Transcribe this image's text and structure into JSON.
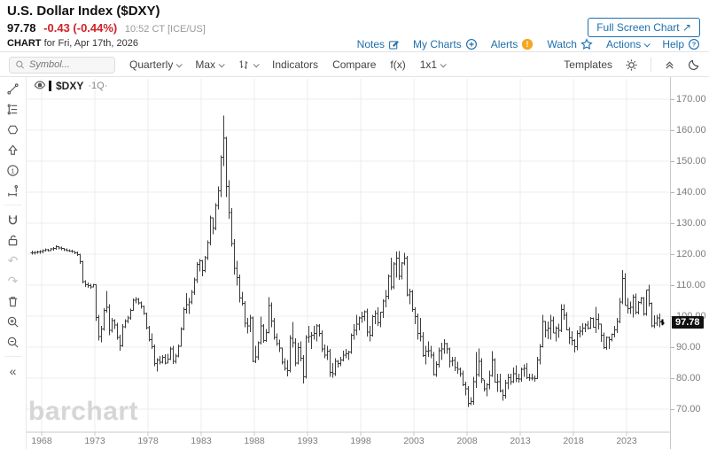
{
  "header": {
    "title": "U.S. Dollar Index ($DXY)",
    "price": "97.78",
    "change": "-0.43 (-0.44%)",
    "quote_time": "10:52 CT [ICE/US]",
    "chart_for_label": "CHART",
    "chart_for_rest": "for Fri, Apr 17th, 2026",
    "fullscreen_label": "Full Screen Chart",
    "fullscreen_arrow": "↗",
    "links": {
      "notes": "Notes",
      "my_charts": "My Charts",
      "alerts": "Alerts",
      "watch": "Watch",
      "actions": "Actions",
      "help": "Help"
    }
  },
  "toolbar": {
    "symbol_placeholder": "Symbol...",
    "period": "Quarterly",
    "range": "Max",
    "indicators": "Indicators",
    "compare": "Compare",
    "fx": "f(x)",
    "layout": "1x1",
    "templates": "Templates"
  },
  "legend": {
    "dots": "⋯",
    "symbol": "$DXY",
    "interval": "·1Q·"
  },
  "watermark": "barchart",
  "colors": {
    "link_blue": "#1f6fad",
    "change_red": "#cf2128",
    "alert_orange": "#f5a623",
    "bar_color": "#3c3c3c",
    "grid": "#ececec",
    "axis_text": "#7d7d7d"
  },
  "chart_data": {
    "type": "ohlc",
    "title": "U.S. Dollar Index ($DXY) quarterly OHLC, Max range",
    "interval": "quarterly",
    "start_year": 1967,
    "start_quarter": 1,
    "x_ticks": [
      1968,
      1973,
      1978,
      1983,
      1988,
      1993,
      1998,
      2003,
      2008,
      2013,
      2018,
      2023
    ],
    "y_ticks": [
      170,
      160,
      150,
      140,
      130,
      120,
      110,
      100,
      90,
      80,
      70
    ],
    "ylim": [
      62,
      177
    ],
    "grid": true,
    "last_price": 97.78,
    "last_price_label": "97.78",
    "bars_format": "[high, low, close] per quarter; open = prior close",
    "bars": [
      [
        121.2,
        119.8,
        120.4
      ],
      [
        121.0,
        119.9,
        120.6
      ],
      [
        121.2,
        120.1,
        120.7
      ],
      [
        121.3,
        120.2,
        120.9
      ],
      [
        121.6,
        120.3,
        121.2
      ],
      [
        121.8,
        120.8,
        121.4
      ],
      [
        121.7,
        120.9,
        121.2
      ],
      [
        122.0,
        121.0,
        121.7
      ],
      [
        122.3,
        121.2,
        121.9
      ],
      [
        122.8,
        121.5,
        122.4
      ],
      [
        122.6,
        121.6,
        122.0
      ],
      [
        122.4,
        121.3,
        121.8
      ],
      [
        122.0,
        121.0,
        121.4
      ],
      [
        121.8,
        120.8,
        121.2
      ],
      [
        121.6,
        120.7,
        121.0
      ],
      [
        121.4,
        120.5,
        120.9
      ],
      [
        121.0,
        120.0,
        120.5
      ],
      [
        120.8,
        119.4,
        119.9
      ],
      [
        120.1,
        116.8,
        117.6
      ],
      [
        117.9,
        110.6,
        111.2
      ],
      [
        111.6,
        109.4,
        110.2
      ],
      [
        110.8,
        109.2,
        109.8
      ],
      [
        110.4,
        108.9,
        109.5
      ],
      [
        110.5,
        109.3,
        110.1
      ],
      [
        110.3,
        98.4,
        99.6
      ],
      [
        100.4,
        92.1,
        93.4
      ],
      [
        96.8,
        91.6,
        95.8
      ],
      [
        102.6,
        95.3,
        101.8
      ],
      [
        108.2,
        101.2,
        102.8
      ],
      [
        103.9,
        93.9,
        95.4
      ],
      [
        99.4,
        94.7,
        98.6
      ],
      [
        99.0,
        95.9,
        97.2
      ],
      [
        97.8,
        92.4,
        93.2
      ],
      [
        94.0,
        88.8,
        90.4
      ],
      [
        97.4,
        90.1,
        96.6
      ],
      [
        99.0,
        96.1,
        98.4
      ],
      [
        100.2,
        97.7,
        99.4
      ],
      [
        102.4,
        98.9,
        101.9
      ],
      [
        105.7,
        101.7,
        105.1
      ],
      [
        106.2,
        104.1,
        105.4
      ],
      [
        105.9,
        103.7,
        104.3
      ],
      [
        104.7,
        102.4,
        103.1
      ],
      [
        103.4,
        100.4,
        100.9
      ],
      [
        101.1,
        95.7,
        96.3
      ],
      [
        96.9,
        91.9,
        92.5
      ],
      [
        94.4,
        89.4,
        90.1
      ],
      [
        90.9,
        83.9,
        84.7
      ],
      [
        86.4,
        82.1,
        85.9
      ],
      [
        87.1,
        84.4,
        85.1
      ],
      [
        87.4,
        84.7,
        86.7
      ],
      [
        87.7,
        84.5,
        84.9
      ],
      [
        87.9,
        84.9,
        86.1
      ],
      [
        90.1,
        85.9,
        89.4
      ],
      [
        90.4,
        84.6,
        85.4
      ],
      [
        87.9,
        84.7,
        87.1
      ],
      [
        90.9,
        86.7,
        90.3
      ],
      [
        96.4,
        90.1,
        95.9
      ],
      [
        102.9,
        95.4,
        102.1
      ],
      [
        107.4,
        100.9,
        103.7
      ],
      [
        105.9,
        100.7,
        104.6
      ],
      [
        108.4,
        103.9,
        107.7
      ],
      [
        112.4,
        106.9,
        111.7
      ],
      [
        117.4,
        110.7,
        116.7
      ],
      [
        118.4,
        114.4,
        117.8
      ],
      [
        118.1,
        112.9,
        114.7
      ],
      [
        119.4,
        114.1,
        118.9
      ],
      [
        124.4,
        118.1,
        123.7
      ],
      [
        132.4,
        122.9,
        131.7
      ],
      [
        131.9,
        126.4,
        128.4
      ],
      [
        136.4,
        127.7,
        135.7
      ],
      [
        141.9,
        134.4,
        140.4
      ],
      [
        151.9,
        138.4,
        151.3
      ],
      [
        164.7,
        148.4,
        157.4
      ],
      [
        157.9,
        138.4,
        141.9
      ],
      [
        143.9,
        131.4,
        133.4
      ],
      [
        134.9,
        122.4,
        123.5
      ],
      [
        124.9,
        113.4,
        115.4
      ],
      [
        117.9,
        109.9,
        112.4
      ],
      [
        113.4,
        104.4,
        105.9
      ],
      [
        107.9,
        103.4,
        104.1
      ],
      [
        104.9,
        96.4,
        97.7
      ],
      [
        99.4,
        94.4,
        96.9
      ],
      [
        100.4,
        94.9,
        99.4
      ],
      [
        99.9,
        85.2,
        85.4
      ],
      [
        90.4,
        84.8,
        86.9
      ],
      [
        91.9,
        85.9,
        91.4
      ],
      [
        99.9,
        90.9,
        96.9
      ],
      [
        97.4,
        91.4,
        92.2
      ],
      [
        95.9,
        91.7,
        94.7
      ],
      [
        106.1,
        94.4,
        103.4
      ],
      [
        104.4,
        96.4,
        98.4
      ],
      [
        99.4,
        92.4,
        93.1
      ],
      [
        94.4,
        90.4,
        91.1
      ],
      [
        92.4,
        88.4,
        89.7
      ],
      [
        89.9,
        84.4,
        85.1
      ],
      [
        86.4,
        82.4,
        83.1
      ],
      [
        85.9,
        80.6,
        82.4
      ],
      [
        93.9,
        81.9,
        92.9
      ],
      [
        98.2,
        89.9,
        91.4
      ],
      [
        92.9,
        83.9,
        84.9
      ],
      [
        91.4,
        84.4,
        89.9
      ],
      [
        91.9,
        85.4,
        86.4
      ],
      [
        87.4,
        78.3,
        80.4
      ],
      [
        93.9,
        79.9,
        93.1
      ],
      [
        96.9,
        91.4,
        93.4
      ],
      [
        94.9,
        89.4,
        93.9
      ],
      [
        96.9,
        92.4,
        94.4
      ],
      [
        97.4,
        91.9,
        96.9
      ],
      [
        97.4,
        93.4,
        94.4
      ],
      [
        95.4,
        88.4,
        89.4
      ],
      [
        90.9,
        86.4,
        87.4
      ],
      [
        90.4,
        85.9,
        88.7
      ],
      [
        89.4,
        80.4,
        81.9
      ],
      [
        84.9,
        80.1,
        81.4
      ],
      [
        86.4,
        80.7,
        85.4
      ],
      [
        85.9,
        83.4,
        84.7
      ],
      [
        86.9,
        83.9,
        85.9
      ],
      [
        88.9,
        85.4,
        87.4
      ],
      [
        89.4,
        86.4,
        87.9
      ],
      [
        88.9,
        85.9,
        88.4
      ],
      [
        94.4,
        87.9,
        93.9
      ],
      [
        97.4,
        92.4,
        95.4
      ],
      [
        100.4,
        93.9,
        97.4
      ],
      [
        99.9,
        95.4,
        99.5
      ],
      [
        101.4,
        97.9,
        99.9
      ],
      [
        101.9,
        98.4,
        101.4
      ],
      [
        102.4,
        93.4,
        94.9
      ],
      [
        96.9,
        91.9,
        93.8
      ],
      [
        100.4,
        93.4,
        99.9
      ],
      [
        101.9,
        97.4,
        100.9
      ],
      [
        102.9,
        96.9,
        97.9
      ],
      [
        101.4,
        96.4,
        101.3
      ],
      [
        105.4,
        99.4,
        104.9
      ],
      [
        108.4,
        102.9,
        106.4
      ],
      [
        113.4,
        105.4,
        112.9
      ],
      [
        118.8,
        108.4,
        109.5
      ],
      [
        117.4,
        108.7,
        116.9
      ],
      [
        120.9,
        112.4,
        118.7
      ],
      [
        121.0,
        111.7,
        112.9
      ],
      [
        117.4,
        111.9,
        117.1
      ],
      [
        120.5,
        116.4,
        118.7
      ],
      [
        119.4,
        106.4,
        106.9
      ],
      [
        108.9,
        103.9,
        107.9
      ],
      [
        108.4,
        101.4,
        102.2
      ],
      [
        102.9,
        97.4,
        99.9
      ],
      [
        100.9,
        92.4,
        94.4
      ],
      [
        99.4,
        91.9,
        93.4
      ],
      [
        94.9,
        86.9,
        87.3
      ],
      [
        90.4,
        84.4,
        88.7
      ],
      [
        91.9,
        86.9,
        88.9
      ],
      [
        90.4,
        86.4,
        87.4
      ],
      [
        88.4,
        80.9,
        81.2
      ],
      [
        85.4,
        80.4,
        84.4
      ],
      [
        89.9,
        83.4,
        88.9
      ],
      [
        91.4,
        85.9,
        89.4
      ],
      [
        92.6,
        87.9,
        91.1
      ],
      [
        91.4,
        87.9,
        89.4
      ],
      [
        89.9,
        83.4,
        85.4
      ],
      [
        86.9,
        83.9,
        85.7
      ],
      [
        86.9,
        82.3,
        83.4
      ],
      [
        85.3,
        81.4,
        82.9
      ],
      [
        83.4,
        80.4,
        81.4
      ],
      [
        82.4,
        77.4,
        77.9
      ],
      [
        78.9,
        74.4,
        76.6
      ],
      [
        77.4,
        70.7,
        71.8
      ],
      [
        73.9,
        71.3,
        72.4
      ],
      [
        80.4,
        71.4,
        78.9
      ],
      [
        88.5,
        76.9,
        81.2
      ],
      [
        89.6,
        80.4,
        85.4
      ],
      [
        86.4,
        78.4,
        79.9
      ],
      [
        79.4,
        75.7,
        76.6
      ],
      [
        78.4,
        74.2,
        77.8
      ],
      [
        82.4,
        76.4,
        80.9
      ],
      [
        88.7,
        80.4,
        85.9
      ],
      [
        86.4,
        78.6,
        78.7
      ],
      [
        81.4,
        75.6,
        78.9
      ],
      [
        81.4,
        75.4,
        75.9
      ],
      [
        76.4,
        72.7,
        74.4
      ],
      [
        79.4,
        73.4,
        78.4
      ],
      [
        81.4,
        76.4,
        80.1
      ],
      [
        81.4,
        77.9,
        78.9
      ],
      [
        83.4,
        78.4,
        81.4
      ],
      [
        84.1,
        78.7,
        79.9
      ],
      [
        81.4,
        78.6,
        79.7
      ],
      [
        83.4,
        78.9,
        82.9
      ],
      [
        84.4,
        80.4,
        83.1
      ],
      [
        84.9,
        79.7,
        80.2
      ],
      [
        81.4,
        79.2,
        80.0
      ],
      [
        81.4,
        79.3,
        80.0
      ],
      [
        80.9,
        78.9,
        79.8
      ],
      [
        86.8,
        79.7,
        85.9
      ],
      [
        91.0,
        84.4,
        90.2
      ],
      [
        100.4,
        89.9,
        98.3
      ],
      [
        98.4,
        93.2,
        95.4
      ],
      [
        98.3,
        92.6,
        96.2
      ],
      [
        100.5,
        92.4,
        98.6
      ],
      [
        99.8,
        94.6,
        94.6
      ],
      [
        96.7,
        91.9,
        96.1
      ],
      [
        97.6,
        93.0,
        95.4
      ],
      [
        103.8,
        94.9,
        102.2
      ],
      [
        103.8,
        98.9,
        100.3
      ],
      [
        101.3,
        95.4,
        95.6
      ],
      [
        96.4,
        91.0,
        93.0
      ],
      [
        95.1,
        90.6,
        92.1
      ],
      [
        92.6,
        88.3,
        90.1
      ],
      [
        95.5,
        89.0,
        94.5
      ],
      [
        96.9,
        93.2,
        95.1
      ],
      [
        97.7,
        93.8,
        96.1
      ],
      [
        97.7,
        94.9,
        97.2
      ],
      [
        98.4,
        95.7,
        96.1
      ],
      [
        99.7,
        95.8,
        99.3
      ],
      [
        99.6,
        96.3,
        96.4
      ],
      [
        103.0,
        94.6,
        99.0
      ],
      [
        100.9,
        95.7,
        97.4
      ],
      [
        97.6,
        91.7,
        93.8
      ],
      [
        94.7,
        89.5,
        89.9
      ],
      [
        93.4,
        89.2,
        93.2
      ],
      [
        93.4,
        89.5,
        92.4
      ],
      [
        94.5,
        91.8,
        94.2
      ],
      [
        96.9,
        93.2,
        95.6
      ],
      [
        99.4,
        94.6,
        98.3
      ],
      [
        105.8,
        97.7,
        104.6
      ],
      [
        114.8,
        103.9,
        112.1
      ],
      [
        113.9,
        103.4,
        103.5
      ],
      [
        105.9,
        100.8,
        102.5
      ],
      [
        104.7,
        100.7,
        102.9
      ],
      [
        107.0,
        99.6,
        106.1
      ],
      [
        107.3,
        100.6,
        101.3
      ],
      [
        104.9,
        100.6,
        104.5
      ],
      [
        106.1,
        103.9,
        105.8
      ],
      [
        106.1,
        100.2,
        100.7
      ],
      [
        108.5,
        100.2,
        108.4
      ],
      [
        110.2,
        103.1,
        104.2
      ],
      [
        104.5,
        96.4,
        96.9
      ],
      [
        100.3,
        96.2,
        97.7
      ],
      [
        100.5,
        96.8,
        99.4
      ],
      [
        100.8,
        96.5,
        98.2
      ],
      [
        99.0,
        97.1,
        97.78
      ]
    ]
  }
}
